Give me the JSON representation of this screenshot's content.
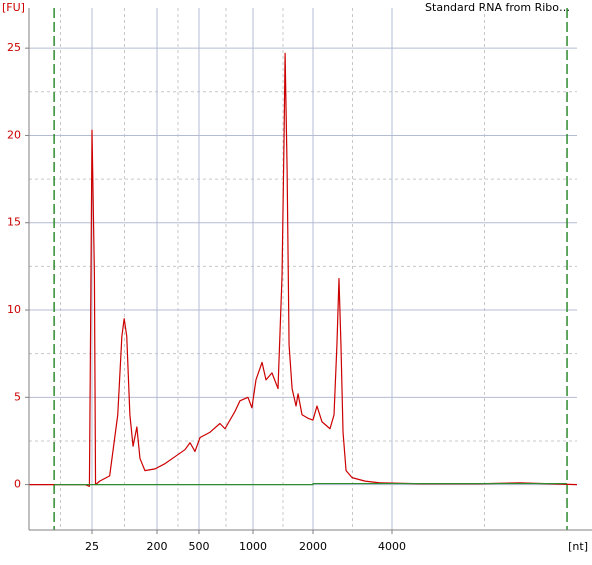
{
  "chart_data": {
    "type": "line",
    "title": "Standard RNA from Ribo…",
    "ylabel": "[FU]",
    "xlabel": "[nt]",
    "xlim": [
      3.3,
      20300
    ],
    "xticks": [
      25,
      200,
      500,
      1000,
      2000,
      4000
    ],
    "ylim": [
      -2.6,
      27.3
    ],
    "yticks": [
      0,
      5,
      10,
      15,
      20,
      25
    ],
    "grid": true,
    "markers": [
      7.4,
      18600
    ],
    "marker_color": "#2e8b2e",
    "series": [
      {
        "color": "#cc0000",
        "x": [
          3.3,
          20,
          23,
          24,
          25,
          27,
          28,
          32,
          44,
          57,
          65,
          70,
          76,
          84,
          93,
          105,
          116,
          136,
          188,
          238,
          296,
          368,
          411,
          458,
          507,
          576,
          654,
          698,
          794,
          846,
          937,
          986,
          1035,
          1110,
          1162,
          1245,
          1335,
          1399,
          1432,
          1449,
          1483,
          1517,
          1571,
          1644,
          1683,
          1762,
          1888,
          2000,
          2071,
          2164,
          2322,
          2405,
          2467,
          2512,
          2556,
          2603,
          2673,
          2818,
          3158,
          3600,
          5115,
          8650,
          12300,
          20300
        ],
        "values": [
          0,
          0,
          -0.1,
          10,
          20.3,
          12,
          0,
          0.2,
          0.5,
          4,
          8.5,
          9.5,
          8.5,
          4,
          2.2,
          3.3,
          1.5,
          0.8,
          0.9,
          1.2,
          1.6,
          2.0,
          2.4,
          1.9,
          2.7,
          3.0,
          3.5,
          3.2,
          4.2,
          4.8,
          5.0,
          4.4,
          6.0,
          7.0,
          6.0,
          6.4,
          5.5,
          12,
          20,
          24.7,
          18,
          8,
          5.5,
          4.5,
          5.2,
          4.0,
          3.8,
          3.7,
          4.5,
          3.6,
          3.2,
          4.0,
          8,
          11.8,
          8,
          3,
          0.8,
          0.4,
          0.2,
          0.1,
          0.05,
          0.05,
          0.1,
          0
        ]
      },
      {
        "color": "#2e8b2e",
        "x": [
          7.4,
          2000,
          2000,
          18600
        ],
        "values": [
          0,
          0,
          0.06,
          0.06
        ]
      }
    ]
  }
}
